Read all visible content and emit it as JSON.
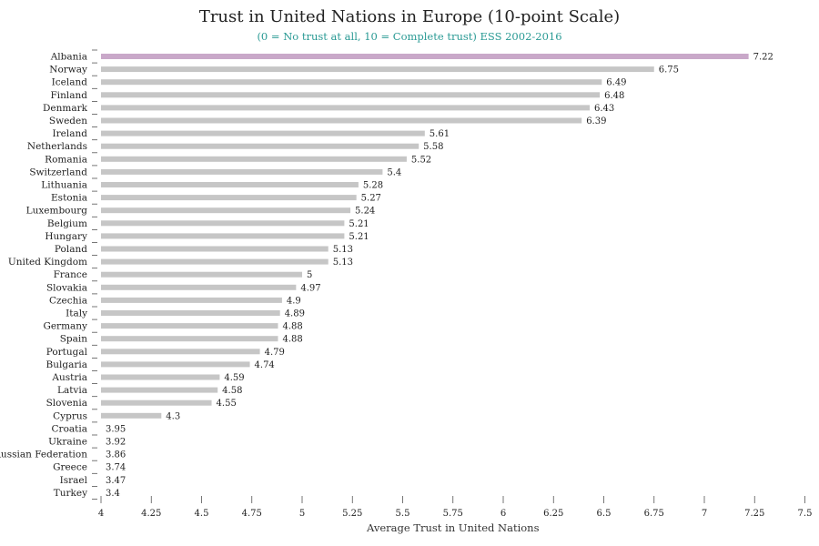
{
  "chart_data": {
    "type": "bar",
    "orientation": "horizontal",
    "title": "Trust in United Nations in Europe (10-point Scale)",
    "subtitle": "(0 = No trust at all, 10 = Complete trust) ESS 2002-2016",
    "xlabel": "Average Trust in United Nations",
    "xlim": [
      4,
      7.5
    ],
    "xticks": [
      "4",
      "4.25",
      "4.5",
      "4.75",
      "5",
      "5.25",
      "5.5",
      "5.75",
      "6",
      "6.25",
      "6.5",
      "6.75",
      "7",
      "7.25",
      "7.5"
    ],
    "categories": [
      "Albania",
      "Norway",
      "Iceland",
      "Finland",
      "Denmark",
      "Sweden",
      "Ireland",
      "Netherlands",
      "Romania",
      "Switzerland",
      "Lithuania",
      "Estonia",
      "Luxembourg",
      "Belgium",
      "Hungary",
      "Poland",
      "United Kingdom",
      "France",
      "Slovakia",
      "Czechia",
      "Italy",
      "Germany",
      "Spain",
      "Portugal",
      "Bulgaria",
      "Austria",
      "Latvia",
      "Slovenia",
      "Cyprus",
      "Croatia",
      "Ukraine",
      "Russian Federation",
      "Greece",
      "Israel",
      "Turkey"
    ],
    "values": [
      7.22,
      6.75,
      6.49,
      6.48,
      6.43,
      6.39,
      5.61,
      5.58,
      5.52,
      5.4,
      5.28,
      5.27,
      5.24,
      5.21,
      5.21,
      5.13,
      5.13,
      5,
      4.97,
      4.9,
      4.89,
      4.88,
      4.88,
      4.79,
      4.74,
      4.59,
      4.58,
      4.55,
      4.3,
      3.95,
      3.92,
      3.86,
      3.74,
      3.47,
      3.4
    ],
    "value_labels": [
      "7.22",
      "6.75",
      "6.49",
      "6.48",
      "6.43",
      "6.39",
      "5.61",
      "5.58",
      "5.52",
      "5.4",
      "5.28",
      "5.27",
      "5.24",
      "5.21",
      "5.21",
      "5.13",
      "5.13",
      "5",
      "4.97",
      "4.9",
      "4.89",
      "4.88",
      "4.88",
      "4.79",
      "4.74",
      "4.59",
      "4.58",
      "4.55",
      "4.3",
      "3.95",
      "3.92",
      "3.86",
      "3.74",
      "3.47",
      "3.4"
    ],
    "highlight_category": "Albania",
    "colors": {
      "bar": "#c6c6c6",
      "highlight": "#c9a8c9",
      "subtitle": "#2a9a94",
      "axis": "#555555"
    }
  }
}
